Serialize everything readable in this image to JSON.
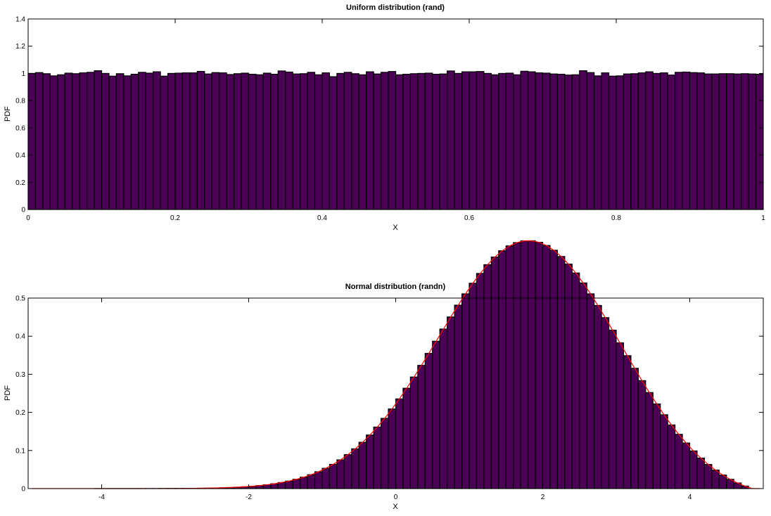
{
  "chart_data": [
    {
      "type": "bar",
      "title": "Uniform distribution (rand)",
      "xlabel": "X",
      "ylabel": "PDF",
      "xlim": [
        0,
        1
      ],
      "ylim": [
        0,
        1.4
      ],
      "xticks": [
        "0",
        "0.2",
        "0.4",
        "0.6",
        "0.8",
        "1"
      ],
      "xtick_values": [
        0,
        0.2,
        0.4,
        0.6,
        0.8,
        1
      ],
      "yticks": [
        "0",
        "0.2",
        "0.4",
        "0.6",
        "0.8",
        "1",
        "1.2",
        "1.4"
      ],
      "ytick_values": [
        0,
        0.2,
        0.4,
        0.6,
        0.8,
        1,
        1.2,
        1.4
      ],
      "grid": false,
      "bar_color": "#4b0055",
      "edge_color": "#000000",
      "bin_start": 0,
      "bin_width": 0.01,
      "values": [
        1.0,
        1.006,
        0.998,
        0.982,
        0.99,
        1.002,
        0.998,
        1.004,
        1.008,
        1.02,
        1.0,
        0.98,
        0.998,
        0.982,
        0.994,
        1.008,
        1.002,
        1.012,
        0.98,
        1.0,
        1.002,
        1.004,
        1.004,
        1.015,
        0.996,
        1.006,
        1.004,
        0.992,
        0.998,
        1.002,
        0.994,
        0.99,
        1.002,
        0.994,
        1.018,
        1.01,
        0.996,
        0.998,
        1.008,
        0.99,
        1.004,
        0.976,
        1.0,
        1.008,
        0.998,
        0.99,
        1.012,
        0.996,
        1.008,
        1.014,
        0.99,
        0.994,
        0.998,
        1.0,
        1.002,
        0.994,
        0.996,
        1.018,
        1.0,
        1.012,
        1.012,
        1.014,
        1.0,
        0.99,
        1.0,
        1.002,
        0.99,
        1.016,
        1.012,
        1.004,
        1.002,
        0.996,
        0.994,
        0.988,
        0.99,
        1.02,
        1.006,
        0.982,
        1.004,
        0.98,
        0.982,
        0.996,
        0.998,
        1.004,
        1.012,
        1.0,
        1.004,
        0.988,
        1.008,
        1.01,
        1.006,
        1.004,
        0.996,
        0.996,
        0.998,
        0.998,
        0.996,
        0.998,
        0.996,
        0.994
      ]
    },
    {
      "type": "bar",
      "title": "Normal distribution (randn)",
      "xlabel": "X",
      "ylabel": "PDF",
      "xlim": [
        -5,
        5
      ],
      "ylim": [
        0,
        0.5
      ],
      "xticks": [
        "-4",
        "-2",
        "0",
        "2",
        "4"
      ],
      "xtick_values": [
        -4,
        -2,
        0,
        2,
        4
      ],
      "yticks": [
        "0",
        "0.1",
        "0.2",
        "0.3",
        "0.4",
        "0.5"
      ],
      "ytick_values": [
        0,
        0.1,
        0.2,
        0.3,
        0.4,
        0.5
      ],
      "grid": false,
      "bar_color": "#4b0055",
      "edge_color": "#000000",
      "curve_color": "#ff0000",
      "bin_start": -5,
      "bin_width": 0.1,
      "values": [
        0.0,
        0.0,
        0.0,
        0.0,
        0.0,
        0.0,
        0.0,
        0.0,
        0.0,
        1e-05,
        1e-05,
        1e-05,
        2e-05,
        3e-05,
        4e-05,
        6e-05,
        9e-05,
        0.00013,
        0.00018,
        0.00025,
        0.00036,
        0.00049,
        0.00067,
        0.00091,
        0.00123,
        0.00164,
        0.00217,
        0.00285,
        0.00373,
        0.00483,
        0.00621,
        0.00793,
        0.01006,
        0.01267,
        0.01586,
        0.01972,
        0.02436,
        0.0299,
        0.03646,
        0.04417,
        0.05316,
        0.06356,
        0.0755,
        0.08908,
        0.10441,
        0.12155,
        0.14057,
        0.1615,
        0.18432,
        0.20898,
        0.23541,
        0.26344,
        0.29287,
        0.32344,
        0.35485,
        0.38675,
        0.41877,
        0.45047,
        0.48138,
        0.51103,
        0.53894,
        0.56465,
        0.58769,
        0.60765,
        0.62415,
        0.63689,
        0.64562,
        0.65015,
        0.65038,
        0.6463,
        0.63796,
        0.62549,
        0.60911,
        0.58911,
        0.56584,
        0.5397,
        0.51115,
        0.48066,
        0.44872,
        0.4158,
        0.38237,
        0.3489,
        0.31579,
        0.28342,
        0.25212,
        0.22216,
        0.19378,
        0.16715,
        0.1424,
        0.11962,
        0.09884,
        0.08007,
        0.06329,
        0.04845,
        0.03547,
        0.02426,
        0.0147,
        0.00666,
        0.0,
        0.0
      ]
    }
  ]
}
